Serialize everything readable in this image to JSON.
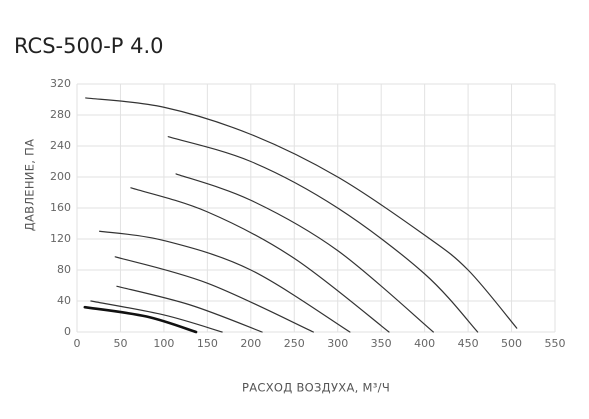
{
  "chart_data": {
    "type": "line",
    "title": "RCS-500-P 4.0",
    "x_label": "РАСХОД ВОЗДУХА, М³/Ч",
    "y_label": "ДАВЛЕНИЕ, ПА",
    "xlim": [
      0,
      550
    ],
    "ylim": [
      0,
      320
    ],
    "xticks": [
      0,
      50,
      100,
      150,
      200,
      250,
      300,
      350,
      400,
      450,
      500,
      550
    ],
    "yticks": [
      0,
      40,
      80,
      120,
      160,
      200,
      240,
      280,
      320
    ],
    "grid": true,
    "series": [
      {
        "color": "#333333",
        "line_width": 1.2,
        "x": [
          10,
          100,
          200,
          300,
          400,
          450,
          506
        ],
        "values": [
          302,
          290,
          255,
          200,
          125,
          80,
          5
        ]
      },
      {
        "color": "#333333",
        "line_width": 1.2,
        "x": [
          105,
          200,
          300,
          400,
          461
        ],
        "values": [
          252,
          220,
          160,
          75,
          0
        ]
      },
      {
        "color": "#333333",
        "line_width": 1.2,
        "x": [
          114,
          200,
          300,
          410
        ],
        "values": [
          204,
          170,
          105,
          0
        ]
      },
      {
        "color": "#333333",
        "line_width": 1.2,
        "x": [
          62,
          150,
          250,
          359
        ],
        "values": [
          186,
          155,
          95,
          0
        ]
      },
      {
        "color": "#333333",
        "line_width": 1.2,
        "x": [
          26,
          100,
          200,
          314
        ],
        "values": [
          130,
          118,
          80,
          0
        ]
      },
      {
        "color": "#333333",
        "line_width": 1.2,
        "x": [
          44,
          150,
          272
        ],
        "values": [
          97,
          63,
          0
        ]
      },
      {
        "color": "#333333",
        "line_width": 1.2,
        "x": [
          46,
          130,
          213
        ],
        "values": [
          59,
          35,
          0
        ]
      },
      {
        "color": "#333333",
        "line_width": 1.2,
        "x": [
          16,
          100,
          167
        ],
        "values": [
          40,
          22,
          0
        ]
      },
      {
        "color": "#111111",
        "line_width": 2.6,
        "x": [
          9,
          80,
          137
        ],
        "values": [
          32,
          20,
          0
        ]
      }
    ]
  }
}
